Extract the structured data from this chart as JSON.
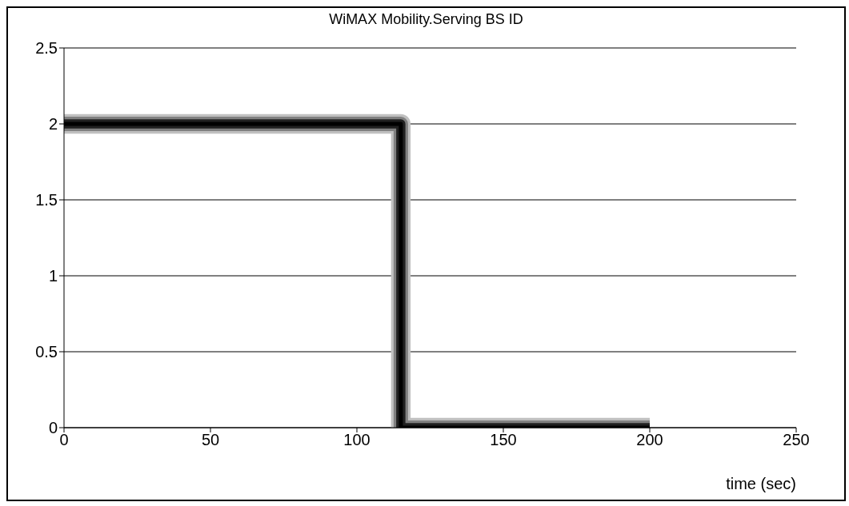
{
  "chart_data": {
    "type": "step",
    "title": "WiMAX Mobility.Serving BS ID",
    "xlabel": "time (sec)",
    "series": [
      {
        "color": "#c0c0c0",
        "x": [
          0,
          115,
          200
        ],
        "values": [
          2,
          0,
          0
        ]
      },
      {
        "color": "#808080",
        "x": [
          0,
          115,
          200
        ],
        "values": [
          2,
          0,
          0
        ]
      },
      {
        "color": "#202020",
        "x": [
          0,
          115,
          200
        ],
        "values": [
          2,
          0,
          0
        ]
      },
      {
        "color": "#000000",
        "x": [
          0,
          115,
          200
        ],
        "values": [
          2,
          0,
          0
        ]
      }
    ],
    "xlim": [
      0,
      250
    ],
    "xticks": [
      0,
      50,
      100,
      150,
      200,
      250
    ],
    "ylim": [
      0,
      2.5
    ],
    "yticks": [
      0,
      0.5,
      1,
      1.5,
      2,
      2.5
    ],
    "grid": "y",
    "legend": false,
    "marker": "none",
    "line_style": "solid"
  }
}
